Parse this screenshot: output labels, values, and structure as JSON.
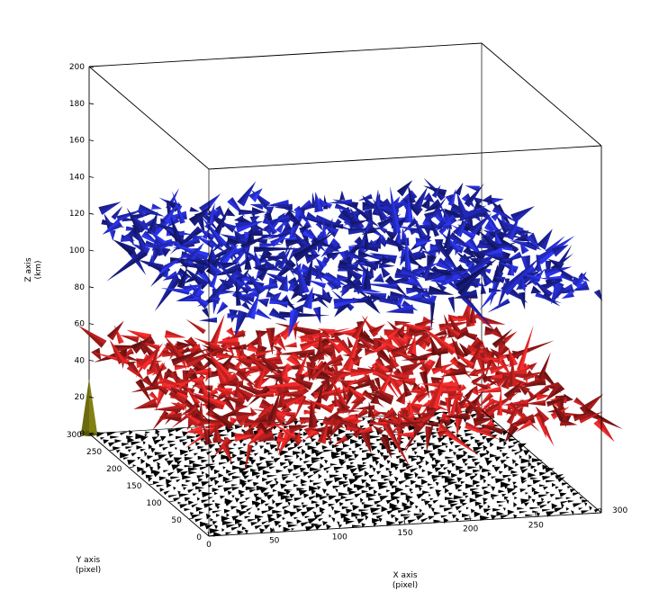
{
  "chart_data": {
    "type": "3d-vector-field",
    "title": "",
    "xlabel": "X axis",
    "xunit": "(pixel)",
    "ylabel": "Y axis",
    "yunit": "(pixel)",
    "zlabel": "Z axis",
    "zunit": "(km)",
    "xlim": [
      0,
      300
    ],
    "ylim": [
      0,
      300
    ],
    "zlim": [
      0,
      200
    ],
    "xticks": [
      "0",
      "50",
      "100",
      "150",
      "200",
      "250",
      "300"
    ],
    "yticks": [
      "0",
      "50",
      "100",
      "150",
      "200",
      "250",
      "300"
    ],
    "zticks": [
      "0",
      "20",
      "40",
      "60",
      "80",
      "100",
      "120",
      "140",
      "160",
      "180",
      "200"
    ],
    "grid": false,
    "layers": [
      {
        "name": "",
        "z": 120,
        "color": "#1a1f8c",
        "marker": "3d-cone-arrows"
      },
      {
        "name": "",
        "z": 50,
        "color": "#9a1a1a",
        "marker": "3d-cone-arrows"
      },
      {
        "name": "",
        "z": 0,
        "color": "#000000",
        "marker": "2d-arrows"
      }
    ],
    "reference_cone": {
      "x": 0,
      "y": 300,
      "z_base": 0,
      "z_top": 30,
      "color": "#6b6a10"
    }
  }
}
